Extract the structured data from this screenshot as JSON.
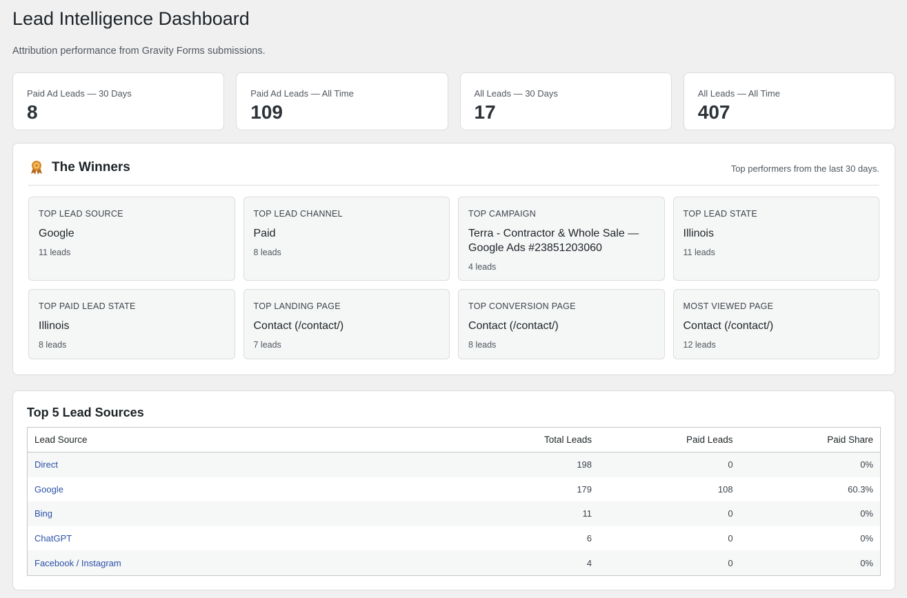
{
  "page": {
    "title": "Lead Intelligence Dashboard",
    "subtitle": "Attribution performance from Gravity Forms submissions."
  },
  "kpis": [
    {
      "label": "Paid Ad Leads — 30 Days",
      "value": "8"
    },
    {
      "label": "Paid Ad Leads — All Time",
      "value": "109"
    },
    {
      "label": "All Leads — 30 Days",
      "value": "17"
    },
    {
      "label": "All Leads — All Time",
      "value": "407"
    }
  ],
  "winners": {
    "title": "The Winners",
    "icon": "award-ribbon-icon",
    "note": "Top performers from the last 30 days.",
    "cards": [
      {
        "label": "TOP LEAD SOURCE",
        "value": "Google",
        "count": "11 leads"
      },
      {
        "label": "TOP LEAD CHANNEL",
        "value": "Paid",
        "count": "8 leads"
      },
      {
        "label": "TOP CAMPAIGN",
        "value": "Terra - Contractor & Whole Sale — Google Ads #23851203060",
        "count": "4 leads"
      },
      {
        "label": "TOP LEAD STATE",
        "value": "Illinois",
        "count": "11 leads"
      },
      {
        "label": "TOP PAID LEAD STATE",
        "value": "Illinois",
        "count": "8 leads"
      },
      {
        "label": "TOP LANDING PAGE",
        "value": "Contact (/contact/)",
        "count": "7 leads"
      },
      {
        "label": "TOP CONVERSION PAGE",
        "value": "Contact (/contact/)",
        "count": "8 leads"
      },
      {
        "label": "MOST VIEWED PAGE",
        "value": "Contact (/contact/)",
        "count": "12 leads"
      }
    ]
  },
  "sources": {
    "title": "Top 5 Lead Sources",
    "columns": [
      "Lead Source",
      "Total Leads",
      "Paid Leads",
      "Paid Share"
    ],
    "rows": [
      {
        "source": "Direct",
        "total": "198",
        "paid": "0",
        "share": "0%"
      },
      {
        "source": "Google",
        "total": "179",
        "paid": "108",
        "share": "60.3%"
      },
      {
        "source": "Bing",
        "total": "11",
        "paid": "0",
        "share": "0%"
      },
      {
        "source": "ChatGPT",
        "total": "6",
        "paid": "0",
        "share": "0%"
      },
      {
        "source": "Facebook / Instagram",
        "total": "4",
        "paid": "0",
        "share": "0%"
      }
    ]
  },
  "colors": {
    "link": "#2c51a8",
    "trophy": "#b4681e",
    "background": "#f0f0f1"
  }
}
